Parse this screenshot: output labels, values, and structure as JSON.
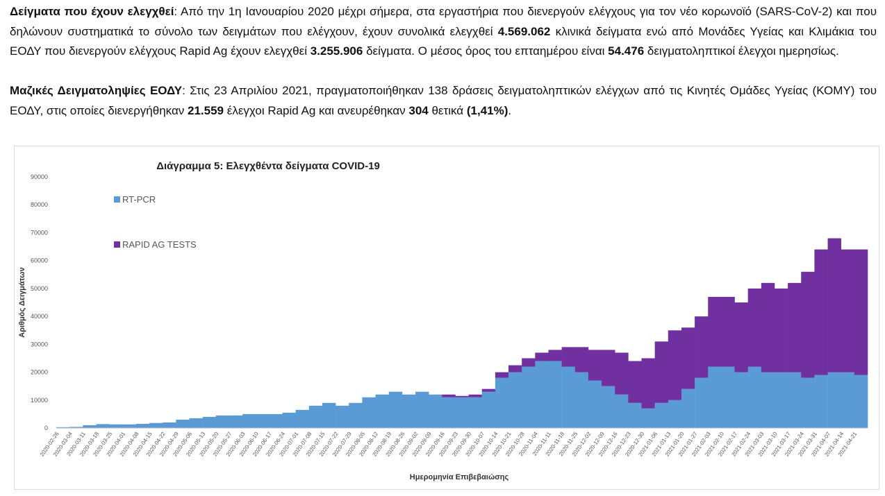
{
  "text": {
    "p1": {
      "lead": "Δείγματα που έχουν ελεγχθεί",
      "a": ": Από την 1η Ιανουαρίου 2020 μέχρι σήμερα, στα εργαστήρια που διενεργούν ελέγχους για τον νέο κορωνοϊό (SARS-CoV-2) και που δηλώνουν συστηματικά το σύνολο των δειγμάτων που ελέγχουν, έχουν συνολικά ελεγχθεί ",
      "n1": "4.569.062",
      "b": " κλινικά δείγματα ενώ από Μονάδες Υγείας και Κλιμάκια του ΕΟΔΥ που διενεργούν ελέγχους Rapid Ag έχουν ελεγχθεί ",
      "n2": "3.255.906",
      "c": " δείγματα.  Ο μέσος όρος του επταημέρου είναι ",
      "n3": "54.476",
      "d": " δειγματοληπτικοί έλεγχοι ημερησίως."
    },
    "p2": {
      "lead": "Μαζικές Δειγματοληψίες ΕΟΔΥ",
      "a": ": Στις 23 Απριλίου 2021, πραγματοποιήθηκαν 138 δράσεις δειγματοληπτικών ελέγχων από τις Κινητές Ομάδες Υγείας (ΚΟΜΥ) του ΕΟΔΥ, στις οποίες διενεργήθηκαν ",
      "n1": "21.559",
      "b": " έλεγχοι Rapid Ag και ανευρέθηκαν ",
      "n2": "304",
      "c": " θετικά ",
      "n3": "(1,41%)",
      "d": "."
    }
  },
  "chart_data": {
    "type": "bar",
    "stacked": true,
    "title": "Διάγραμμα 5: Ελεγχθέντα δείγματα COVID-19",
    "xlabel": "Ημερομηνία Επιβεβαιώσης",
    "ylabel": "Αριθμός Δειγμάτων",
    "ylim": [
      0,
      90000
    ],
    "yticks": [
      0,
      10000,
      20000,
      30000,
      40000,
      50000,
      60000,
      70000,
      80000,
      90000
    ],
    "legend_placement": "top-left",
    "categories": [
      "2020-02-26",
      "2020-03-04",
      "2020-03-11",
      "2020-03-18",
      "2020-03-25",
      "2020-04-01",
      "2020-04-08",
      "2020-04-15",
      "2020-04-22",
      "2020-04-29",
      "2020-05-06",
      "2020-05-13",
      "2020-05-20",
      "2020-05-27",
      "2020-06-03",
      "2020-06-10",
      "2020-06-17",
      "2020-06-24",
      "2020-07-01",
      "2020-07-08",
      "2020-07-15",
      "2020-07-22",
      "2020-07-29",
      "2020-08-05",
      "2020-08-12",
      "2020-08-19",
      "2020-08-26",
      "2020-09-02",
      "2020-09-09",
      "2020-09-16",
      "2020-09-23",
      "2020-09-30",
      "2020-10-07",
      "2020-10-14",
      "2020-10-21",
      "2020-10-28",
      "2020-11-04",
      "2020-11-11",
      "2020-11-18",
      "2020-11-25",
      "2020-12-02",
      "2020-12-09",
      "2020-12-16",
      "2020-12-23",
      "2020-12-30",
      "2021-01-06",
      "2021-01-13",
      "2021-01-20",
      "2021-01-27",
      "2021-02-03",
      "2021-02-10",
      "2021-02-17",
      "2021-02-24",
      "2021-03-03",
      "2021-03-10",
      "2021-03-17",
      "2021-03-24",
      "2021-03-31",
      "2021-04-07",
      "2021-04-14",
      "2021-04-21"
    ],
    "series": [
      {
        "name": "RT-PCR",
        "color": "#5b9bd5",
        "values": [
          300,
          400,
          1000,
          1400,
          1300,
          1300,
          1500,
          1800,
          2000,
          3000,
          3500,
          4000,
          4500,
          4500,
          5000,
          5000,
          5000,
          5500,
          6500,
          8000,
          9000,
          8000,
          9000,
          11000,
          12000,
          13000,
          12000,
          13000,
          12000,
          11000,
          11000,
          11000,
          13000,
          18000,
          20000,
          22000,
          24000,
          24000,
          22000,
          20000,
          17000,
          15000,
          12000,
          9000,
          7000,
          9000,
          10000,
          14000,
          18000,
          22000,
          22000,
          20000,
          22000,
          20000,
          20000,
          20000,
          18000,
          19000,
          20000,
          20000,
          19000
        ]
      },
      {
        "name": "RAPID AG TESTS",
        "color": "#7030a0",
        "values": [
          0,
          0,
          0,
          0,
          0,
          0,
          0,
          0,
          0,
          0,
          0,
          0,
          0,
          0,
          0,
          0,
          0,
          0,
          0,
          0,
          0,
          0,
          0,
          0,
          0,
          0,
          0,
          0,
          0,
          1000,
          500,
          1000,
          1000,
          2000,
          2500,
          3000,
          3000,
          4000,
          7000,
          9000,
          11000,
          13000,
          15000,
          15000,
          18000,
          22000,
          25000,
          22000,
          22000,
          25000,
          25000,
          25000,
          28000,
          32000,
          30000,
          32000,
          38000,
          45000,
          48000,
          44000,
          45000
        ]
      }
    ]
  }
}
